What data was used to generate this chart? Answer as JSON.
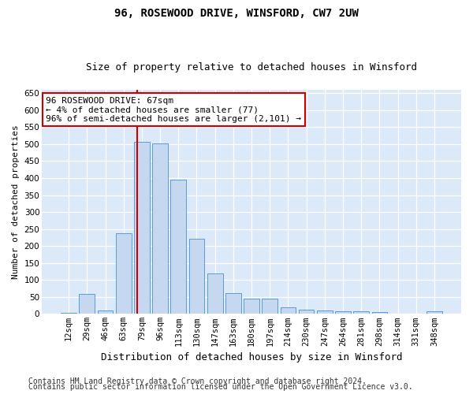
{
  "title": "96, ROSEWOOD DRIVE, WINSFORD, CW7 2UW",
  "subtitle": "Size of property relative to detached houses in Winsford",
  "xlabel": "Distribution of detached houses by size in Winsford",
  "ylabel": "Number of detached properties",
  "categories": [
    "12sqm",
    "29sqm",
    "46sqm",
    "63sqm",
    "79sqm",
    "96sqm",
    "113sqm",
    "130sqm",
    "147sqm",
    "163sqm",
    "180sqm",
    "197sqm",
    "214sqm",
    "230sqm",
    "247sqm",
    "264sqm",
    "281sqm",
    "298sqm",
    "314sqm",
    "331sqm",
    "348sqm"
  ],
  "values": [
    4,
    60,
    10,
    238,
    507,
    503,
    395,
    222,
    120,
    62,
    46,
    46,
    20,
    12,
    10,
    8,
    7,
    5,
    1,
    1,
    7
  ],
  "bar_color": "#c5d8f0",
  "bar_edge_color": "#5b9bd5",
  "vline_color": "#cc0000",
  "vline_x": 3.75,
  "annotation_text": "96 ROSEWOOD DRIVE: 67sqm\n← 4% of detached houses are smaller (77)\n96% of semi-detached houses are larger (2,101) →",
  "annotation_box_color": "#ffffff",
  "annotation_box_edge": "#cc0000",
  "ylim": [
    0,
    660
  ],
  "yticks": [
    0,
    50,
    100,
    150,
    200,
    250,
    300,
    350,
    400,
    450,
    500,
    550,
    600,
    650
  ],
  "footer1": "Contains HM Land Registry data © Crown copyright and database right 2024.",
  "footer2": "Contains public sector information licensed under the Open Government Licence v3.0.",
  "bg_color": "#dce9f8",
  "grid_color": "#ffffff",
  "title_fontsize": 10,
  "subtitle_fontsize": 9,
  "ylabel_fontsize": 8,
  "xlabel_fontsize": 9,
  "tick_fontsize": 7.5,
  "footer_fontsize": 7,
  "ann_fontsize": 8
}
